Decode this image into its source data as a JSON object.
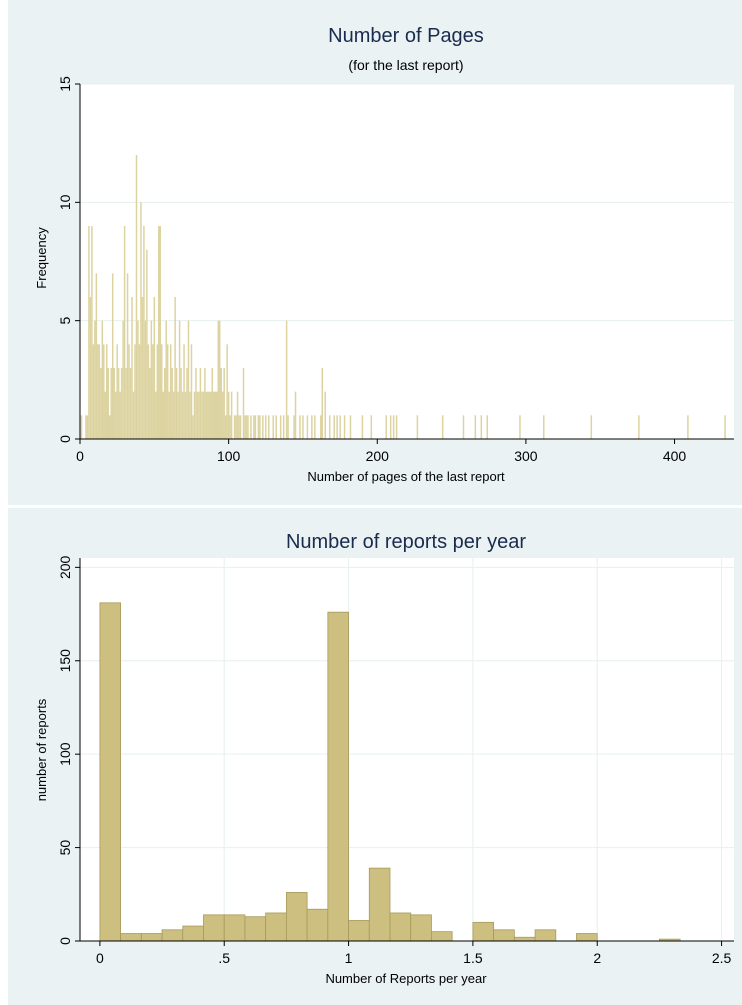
{
  "chart_data": [
    {
      "type": "bar",
      "title": "Number of Pages",
      "subtitle": "(for the last report)",
      "xlabel": "Number of pages of the last report",
      "ylabel": "Frequency",
      "xlim": [
        0,
        440
      ],
      "ylim": [
        0,
        15
      ],
      "xticks": [
        0,
        100,
        200,
        300,
        400
      ],
      "yticks": [
        0,
        5,
        10,
        15
      ],
      "grid": true,
      "color": "#dcd3a0",
      "bins": [
        {
          "x": 1,
          "y": 1
        },
        {
          "x": 4,
          "y": 1
        },
        {
          "x": 5,
          "y": 1
        },
        {
          "x": 6,
          "y": 9
        },
        {
          "x": 7,
          "y": 6
        },
        {
          "x": 8,
          "y": 9
        },
        {
          "x": 9,
          "y": 4
        },
        {
          "x": 10,
          "y": 5
        },
        {
          "x": 11,
          "y": 7
        },
        {
          "x": 12,
          "y": 4
        },
        {
          "x": 13,
          "y": 4
        },
        {
          "x": 14,
          "y": 3
        },
        {
          "x": 15,
          "y": 5
        },
        {
          "x": 16,
          "y": 4
        },
        {
          "x": 17,
          "y": 2
        },
        {
          "x": 18,
          "y": 4
        },
        {
          "x": 19,
          "y": 3
        },
        {
          "x": 20,
          "y": 1
        },
        {
          "x": 21,
          "y": 3
        },
        {
          "x": 22,
          "y": 7
        },
        {
          "x": 23,
          "y": 3
        },
        {
          "x": 24,
          "y": 2
        },
        {
          "x": 25,
          "y": 4
        },
        {
          "x": 26,
          "y": 3
        },
        {
          "x": 27,
          "y": 2
        },
        {
          "x": 28,
          "y": 3
        },
        {
          "x": 29,
          "y": 5
        },
        {
          "x": 30,
          "y": 9
        },
        {
          "x": 31,
          "y": 3
        },
        {
          "x": 32,
          "y": 7
        },
        {
          "x": 33,
          "y": 4
        },
        {
          "x": 34,
          "y": 3
        },
        {
          "x": 35,
          "y": 6
        },
        {
          "x": 36,
          "y": 2
        },
        {
          "x": 37,
          "y": 4
        },
        {
          "x": 38,
          "y": 12
        },
        {
          "x": 39,
          "y": 5
        },
        {
          "x": 40,
          "y": 4
        },
        {
          "x": 41,
          "y": 10
        },
        {
          "x": 42,
          "y": 6
        },
        {
          "x": 43,
          "y": 9
        },
        {
          "x": 44,
          "y": 5
        },
        {
          "x": 45,
          "y": 8
        },
        {
          "x": 46,
          "y": 4
        },
        {
          "x": 47,
          "y": 3
        },
        {
          "x": 48,
          "y": 5
        },
        {
          "x": 49,
          "y": 4
        },
        {
          "x": 50,
          "y": 6
        },
        {
          "x": 51,
          "y": 2
        },
        {
          "x": 52,
          "y": 4
        },
        {
          "x": 53,
          "y": 9
        },
        {
          "x": 54,
          "y": 9
        },
        {
          "x": 55,
          "y": 4
        },
        {
          "x": 56,
          "y": 2
        },
        {
          "x": 57,
          "y": 3
        },
        {
          "x": 58,
          "y": 5
        },
        {
          "x": 59,
          "y": 4
        },
        {
          "x": 60,
          "y": 2
        },
        {
          "x": 61,
          "y": 4
        },
        {
          "x": 62,
          "y": 3
        },
        {
          "x": 63,
          "y": 2
        },
        {
          "x": 64,
          "y": 6
        },
        {
          "x": 65,
          "y": 3
        },
        {
          "x": 66,
          "y": 2
        },
        {
          "x": 67,
          "y": 5
        },
        {
          "x": 68,
          "y": 3
        },
        {
          "x": 69,
          "y": 2
        },
        {
          "x": 70,
          "y": 4
        },
        {
          "x": 71,
          "y": 2
        },
        {
          "x": 72,
          "y": 3
        },
        {
          "x": 73,
          "y": 5
        },
        {
          "x": 74,
          "y": 2
        },
        {
          "x": 75,
          "y": 4
        },
        {
          "x": 76,
          "y": 1
        },
        {
          "x": 77,
          "y": 2
        },
        {
          "x": 78,
          "y": 3
        },
        {
          "x": 79,
          "y": 2
        },
        {
          "x": 80,
          "y": 2
        },
        {
          "x": 81,
          "y": 3
        },
        {
          "x": 82,
          "y": 2
        },
        {
          "x": 83,
          "y": 2
        },
        {
          "x": 84,
          "y": 3
        },
        {
          "x": 85,
          "y": 2
        },
        {
          "x": 86,
          "y": 2
        },
        {
          "x": 87,
          "y": 2
        },
        {
          "x": 88,
          "y": 2
        },
        {
          "x": 89,
          "y": 3
        },
        {
          "x": 90,
          "y": 2
        },
        {
          "x": 91,
          "y": 2
        },
        {
          "x": 92,
          "y": 2
        },
        {
          "x": 93,
          "y": 5
        },
        {
          "x": 94,
          "y": 5
        },
        {
          "x": 95,
          "y": 3
        },
        {
          "x": 96,
          "y": 2
        },
        {
          "x": 97,
          "y": 3
        },
        {
          "x": 98,
          "y": 1
        },
        {
          "x": 99,
          "y": 4
        },
        {
          "x": 100,
          "y": 2
        },
        {
          "x": 101,
          "y": 1
        },
        {
          "x": 102,
          "y": 2
        },
        {
          "x": 104,
          "y": 1
        },
        {
          "x": 105,
          "y": 1
        },
        {
          "x": 106,
          "y": 2
        },
        {
          "x": 107,
          "y": 1
        },
        {
          "x": 108,
          "y": 1
        },
        {
          "x": 110,
          "y": 3
        },
        {
          "x": 111,
          "y": 1
        },
        {
          "x": 112,
          "y": 1
        },
        {
          "x": 113,
          "y": 1
        },
        {
          "x": 115,
          "y": 1
        },
        {
          "x": 117,
          "y": 1
        },
        {
          "x": 118,
          "y": 1
        },
        {
          "x": 120,
          "y": 1
        },
        {
          "x": 121,
          "y": 1
        },
        {
          "x": 123,
          "y": 1
        },
        {
          "x": 125,
          "y": 1
        },
        {
          "x": 127,
          "y": 1
        },
        {
          "x": 130,
          "y": 1
        },
        {
          "x": 132,
          "y": 1
        },
        {
          "x": 135,
          "y": 1
        },
        {
          "x": 137,
          "y": 1
        },
        {
          "x": 139,
          "y": 5
        },
        {
          "x": 140,
          "y": 1
        },
        {
          "x": 144,
          "y": 1
        },
        {
          "x": 145,
          "y": 2
        },
        {
          "x": 148,
          "y": 1
        },
        {
          "x": 150,
          "y": 1
        },
        {
          "x": 153,
          "y": 1
        },
        {
          "x": 156,
          "y": 1
        },
        {
          "x": 158,
          "y": 1
        },
        {
          "x": 162,
          "y": 1
        },
        {
          "x": 163,
          "y": 3
        },
        {
          "x": 165,
          "y": 2
        },
        {
          "x": 168,
          "y": 1
        },
        {
          "x": 171,
          "y": 1
        },
        {
          "x": 173,
          "y": 1
        },
        {
          "x": 175,
          "y": 1
        },
        {
          "x": 178,
          "y": 1
        },
        {
          "x": 182,
          "y": 1
        },
        {
          "x": 190,
          "y": 1
        },
        {
          "x": 196,
          "y": 1
        },
        {
          "x": 206,
          "y": 1
        },
        {
          "x": 209,
          "y": 1
        },
        {
          "x": 211,
          "y": 1
        },
        {
          "x": 213,
          "y": 1
        },
        {
          "x": 227,
          "y": 1
        },
        {
          "x": 244,
          "y": 1
        },
        {
          "x": 258,
          "y": 1
        },
        {
          "x": 266,
          "y": 1
        },
        {
          "x": 270,
          "y": 1
        },
        {
          "x": 274,
          "y": 1
        },
        {
          "x": 296,
          "y": 1
        },
        {
          "x": 312,
          "y": 1
        },
        {
          "x": 344,
          "y": 1
        },
        {
          "x": 376,
          "y": 1
        },
        {
          "x": 409,
          "y": 1
        },
        {
          "x": 434,
          "y": 1
        }
      ]
    },
    {
      "type": "bar",
      "title": "Number of reports per year",
      "xlabel": "Number of Reports per year",
      "ylabel": "number of reports",
      "xlim": [
        -0.08,
        2.55
      ],
      "ylim": [
        0,
        205
      ],
      "xticks": [
        0,
        0.5,
        1,
        1.5,
        2,
        2.5
      ],
      "xtick_labels": [
        "0",
        ".5",
        "1",
        "1.5",
        "2",
        "2.5"
      ],
      "yticks": [
        0,
        50,
        100,
        150,
        200
      ],
      "grid": true,
      "color": "#cdbf80",
      "bin_width": 0.0833,
      "bin_starts": [
        0,
        0.0833,
        0.1667,
        0.25,
        0.3333,
        0.4167,
        0.5,
        0.5833,
        0.6667,
        0.75,
        0.8333,
        0.9167,
        1.0,
        1.0833,
        1.1667,
        1.25,
        1.3333,
        1.4167,
        1.5,
        1.5833,
        1.6667,
        1.75,
        1.8333,
        1.9167,
        2.0,
        2.0833,
        2.1667,
        2.25,
        2.3333,
        2.4167
      ],
      "values": [
        181,
        4,
        4,
        6,
        8,
        14,
        14,
        13,
        15,
        26,
        17,
        176,
        11,
        39,
        15,
        14,
        5,
        0,
        10,
        6,
        2,
        6,
        0,
        4,
        0,
        0,
        0,
        1,
        0,
        0
      ]
    }
  ]
}
